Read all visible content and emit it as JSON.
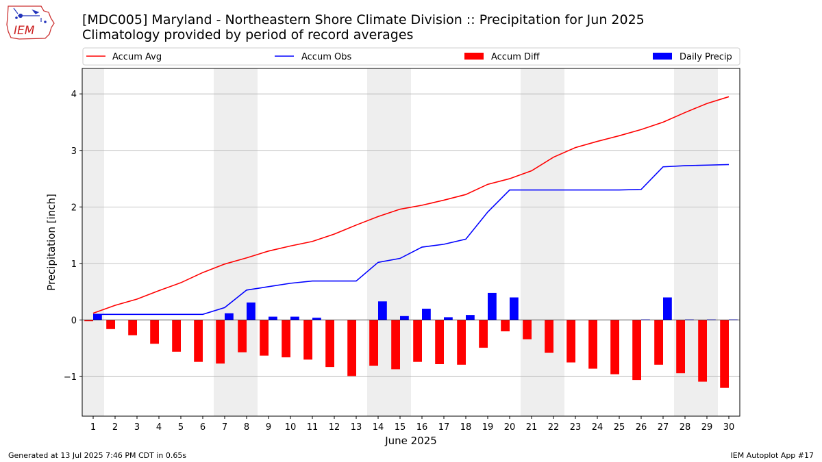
{
  "header": {
    "title_line1": "[MDC005] Maryland - Northeastern Shore Climate Division :: Precipitation for Jun 2025",
    "title_line2": "Climatology provided by period of record averages",
    "logo_text": "IEM"
  },
  "footer": {
    "left": "Generated at 13 Jul 2025 7:46 PM CDT in 0.65s",
    "right": "IEM Autoplot App #17"
  },
  "chart_data": {
    "type": "bar",
    "title": "[MDC005] Maryland - Northeastern Shore Climate Division :: Precipitation for Jun 2025",
    "subtitle": "Climatology provided by period of record averages",
    "xlabel": "June 2025",
    "ylabel": "Precipitation [inch]",
    "ylim": [
      -1.7,
      4.45
    ],
    "yticks": [
      -1,
      0,
      1,
      2,
      3,
      4
    ],
    "ytick_labels": [
      "−1",
      "0",
      "1",
      "2",
      "3",
      "4"
    ],
    "xlim": [
      0.5,
      30.5
    ],
    "categories": [
      "1",
      "2",
      "3",
      "4",
      "5",
      "6",
      "7",
      "8",
      "9",
      "10",
      "11",
      "12",
      "13",
      "14",
      "15",
      "16",
      "17",
      "18",
      "19",
      "20",
      "21",
      "22",
      "23",
      "24",
      "25",
      "26",
      "27",
      "28",
      "29",
      "30"
    ],
    "grid": "horizontal",
    "legend_placement": "top, above plot",
    "weekend_shading": [
      [
        0.5,
        1.5
      ],
      [
        6.5,
        8.5
      ],
      [
        13.5,
        15.5
      ],
      [
        20.5,
        22.5
      ],
      [
        27.5,
        29.5
      ]
    ],
    "colors": {
      "accum_avg": "#ff0000",
      "accum_obs": "#0000ff",
      "accum_diff": "#ff0000",
      "daily_precip": "#0000ff",
      "weekend": "#eeeeee",
      "grid": "#b0b0b0"
    },
    "series": [
      {
        "name": "Accum Avg",
        "type": "line",
        "values": [
          0.12,
          0.26,
          0.37,
          0.52,
          0.66,
          0.84,
          0.99,
          1.1,
          1.22,
          1.31,
          1.39,
          1.52,
          1.68,
          1.83,
          1.96,
          2.03,
          2.12,
          2.22,
          2.4,
          2.5,
          2.64,
          2.88,
          3.05,
          3.16,
          3.26,
          3.37,
          3.5,
          3.67,
          3.83,
          3.95
        ]
      },
      {
        "name": "Accum Obs",
        "type": "line",
        "values": [
          0.1,
          0.1,
          0.1,
          0.1,
          0.1,
          0.1,
          0.22,
          0.53,
          0.59,
          0.65,
          0.69,
          0.69,
          0.69,
          1.02,
          1.09,
          1.29,
          1.34,
          1.43,
          1.91,
          2.3,
          2.3,
          2.3,
          2.3,
          2.3,
          2.3,
          2.31,
          2.71,
          2.73,
          2.74,
          2.75
        ]
      },
      {
        "name": "Accum Diff",
        "type": "bar",
        "values": [
          -0.02,
          -0.16,
          -0.27,
          -0.42,
          -0.56,
          -0.74,
          -0.77,
          -0.57,
          -0.63,
          -0.66,
          -0.7,
          -0.83,
          -0.99,
          -0.81,
          -0.87,
          -0.74,
          -0.78,
          -0.79,
          -0.49,
          -0.2,
          -0.34,
          -0.58,
          -0.75,
          -0.86,
          -0.96,
          -1.06,
          -0.79,
          -0.94,
          -1.09,
          -1.2
        ]
      },
      {
        "name": "Daily Precip",
        "type": "bar",
        "values": [
          0.1,
          0.0,
          0.0,
          0.0,
          0.0,
          0.0,
          0.12,
          0.31,
          0.06,
          0.06,
          0.04,
          0.0,
          0.0,
          0.33,
          0.07,
          0.2,
          0.05,
          0.09,
          0.48,
          0.4,
          0.0,
          0.0,
          0.0,
          0.0,
          0.0,
          0.01,
          0.4,
          0.01,
          0.01,
          0.01
        ]
      }
    ]
  }
}
